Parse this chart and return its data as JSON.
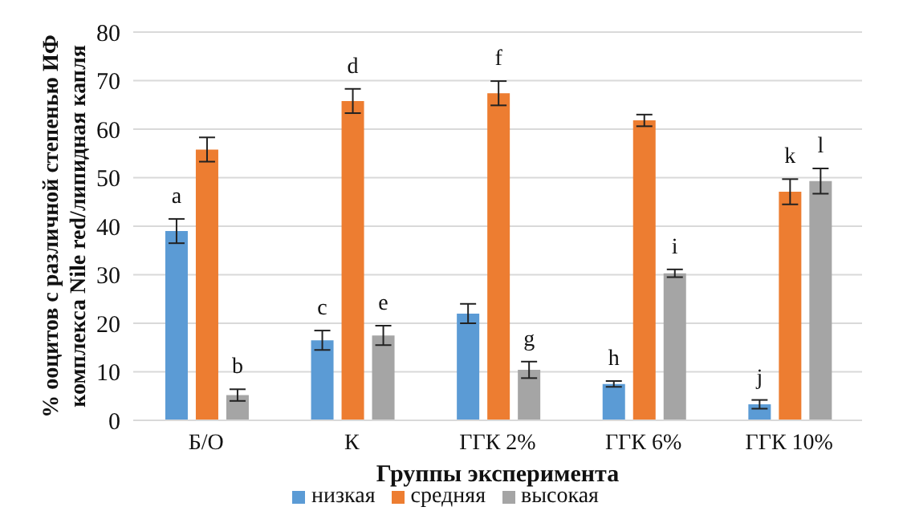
{
  "chart_data": {
    "type": "bar",
    "xlabel": "Группы эксперимента",
    "ylabel": "% ооцитов с различной степенью ИФ комплекса Nile red/липидная капля",
    "categories": [
      "Б/О",
      "К",
      "ГГК 2%",
      "ГГК 6%",
      "ГГК 10%"
    ],
    "series": [
      {
        "name": "низкая",
        "color": "#5b9bd5",
        "values": [
          39,
          16.5,
          22,
          7.5,
          3.3
        ],
        "errors": [
          2.5,
          2,
          2,
          0.6,
          0.9
        ],
        "value_labels": [
          "a",
          "c",
          null,
          "h",
          "j"
        ]
      },
      {
        "name": "средняя",
        "color": "#ed7d31",
        "values": [
          55.8,
          65.8,
          67.4,
          61.8,
          47.1
        ],
        "errors": [
          2.5,
          2.5,
          2.5,
          1.2,
          2.6
        ],
        "value_labels": [
          null,
          "d",
          "f",
          null,
          "k"
        ]
      },
      {
        "name": "высокая",
        "color": "#a5a5a5",
        "values": [
          5.2,
          17.5,
          10.4,
          30.3,
          49.3
        ],
        "errors": [
          1.2,
          2,
          1.7,
          0.8,
          2.6
        ],
        "value_labels": [
          "b",
          "e",
          "g",
          "i",
          "l"
        ]
      }
    ],
    "ylim": [
      0,
      80
    ],
    "yticks": [
      0,
      10,
      20,
      30,
      40,
      50,
      60,
      70,
      80
    ],
    "grid": "y",
    "legend": "bottom"
  }
}
